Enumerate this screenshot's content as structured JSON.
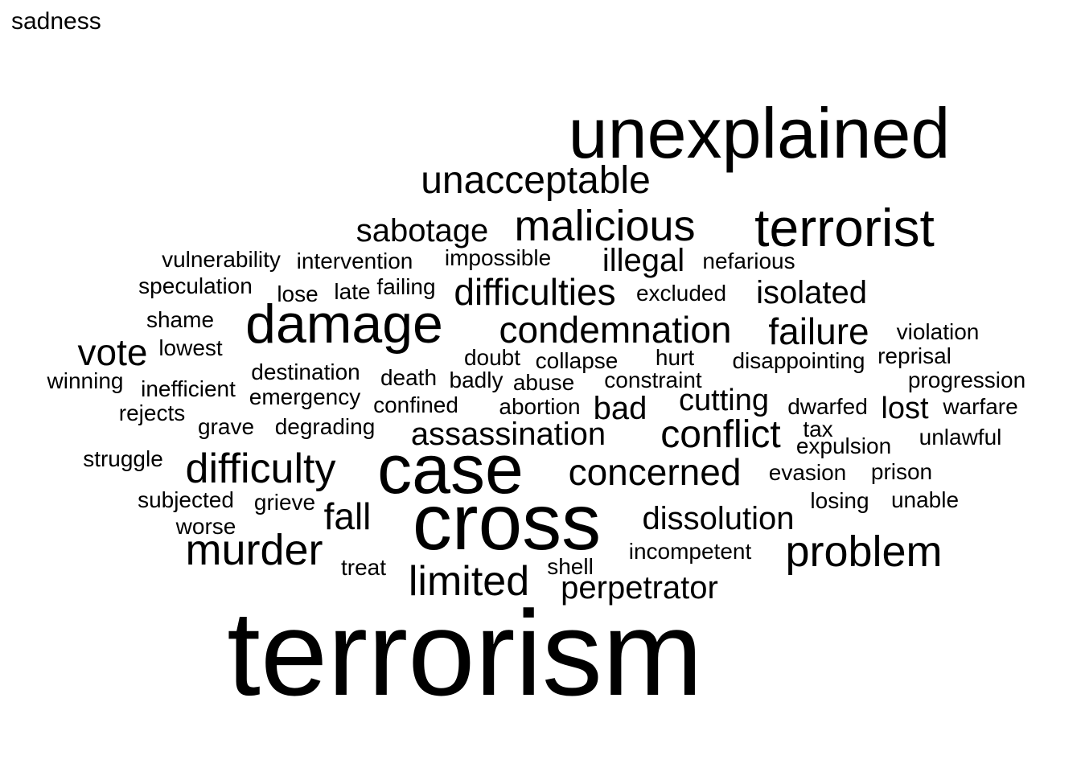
{
  "title": "sadness",
  "words": [
    "terrorism",
    "unexplained",
    "cross",
    "case",
    "damage",
    "terrorist",
    "malicious",
    "unacceptable",
    "difficulty",
    "murder",
    "problem",
    "limited",
    "condemnation",
    "conflict",
    "concerned",
    "difficulties",
    "failure",
    "sabotage",
    "assassination",
    "vote",
    "dissolution",
    "isolated",
    "illegal",
    "fall",
    "perpetrator",
    "cutting",
    "bad",
    "lost",
    "intervention",
    "vulnerability",
    "impossible",
    "nefarious",
    "speculation",
    "lose",
    "late",
    "failing",
    "excluded",
    "shame",
    "lowest",
    "violation",
    "doubt",
    "collapse",
    "hurt",
    "disappointing",
    "reprisal",
    "winning",
    "destination",
    "death",
    "badly",
    "abuse",
    "constraint",
    "progression",
    "inefficient",
    "emergency",
    "confined",
    "abortion",
    "dwarfed",
    "warfare",
    "rejects",
    "grave",
    "degrading",
    "tax",
    "expulsion",
    "unlawful",
    "struggle",
    "evasion",
    "prison",
    "subjected",
    "grieve",
    "losing",
    "unable",
    "worse",
    "incompetent",
    "treat",
    "shell"
  ]
}
